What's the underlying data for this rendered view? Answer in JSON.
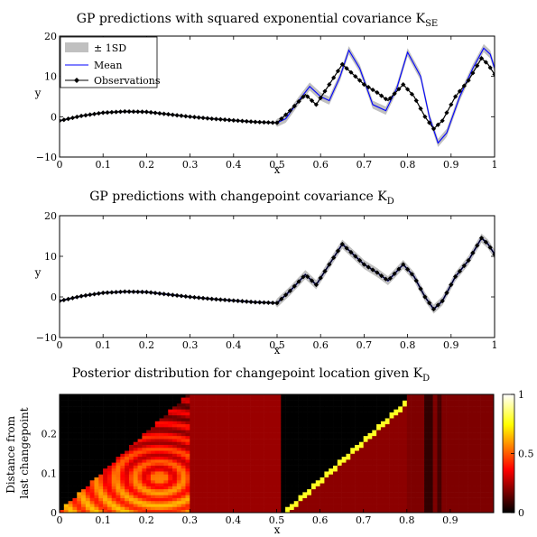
{
  "chart_data": [
    {
      "type": "line",
      "title": "GP predictions with squared exponential covariance K",
      "title_sub": "SE",
      "xlabel": "x",
      "ylabel": "y",
      "xlim": [
        0,
        1
      ],
      "ylim": [
        -10,
        20
      ],
      "xticks": [
        "0",
        "0.1",
        "0.2",
        "0.3",
        "0.4",
        "0.5",
        "0.6",
        "0.7",
        "0.8",
        "0.9",
        "1"
      ],
      "yticks": [
        "−10",
        "0",
        "10",
        "20"
      ],
      "legend": {
        "placement": "top-left",
        "entries": [
          "± 1SD",
          "Mean",
          "Observations"
        ]
      },
      "colors": {
        "mean": "#0000ff",
        "band": "#c0c0c0",
        "obs": "#000000"
      },
      "series": [
        {
          "name": "Observations",
          "x": [
            0,
            0.05,
            0.1,
            0.15,
            0.2,
            0.25,
            0.3,
            0.35,
            0.4,
            0.45,
            0.5,
            0.53,
            0.565,
            0.59,
            0.62,
            0.65,
            0.68,
            0.7,
            0.73,
            0.755,
            0.79,
            0.815,
            0.84,
            0.86,
            0.88,
            0.91,
            0.94,
            0.97,
            0.985,
            1.0
          ],
          "y": [
            -1,
            0.2,
            1.0,
            1.3,
            1.2,
            0.6,
            0,
            -0.5,
            -0.9,
            -1.3,
            -1.5,
            1.5,
            5.5,
            3.0,
            8.0,
            13.0,
            10.0,
            8.0,
            6.0,
            4.0,
            8.0,
            5.0,
            0.0,
            -3.0,
            -1.0,
            5.0,
            9.0,
            14.5,
            13.0,
            10.5
          ]
        },
        {
          "name": "Mean",
          "x": [
            0,
            0.05,
            0.1,
            0.15,
            0.2,
            0.25,
            0.3,
            0.35,
            0.4,
            0.45,
            0.5,
            0.52,
            0.55,
            0.575,
            0.6,
            0.62,
            0.645,
            0.665,
            0.69,
            0.72,
            0.75,
            0.775,
            0.8,
            0.83,
            0.85,
            0.87,
            0.89,
            0.92,
            0.95,
            0.975,
            0.99,
            1.0
          ],
          "y": [
            -1,
            0.2,
            1.0,
            1.3,
            1.2,
            0.6,
            0,
            -0.5,
            -0.9,
            -1.3,
            -1.5,
            -0.5,
            4.0,
            7.5,
            5.0,
            4.0,
            10.0,
            16.5,
            12.0,
            3.0,
            1.5,
            7.0,
            16.0,
            10.0,
            0.0,
            -6.5,
            -4.0,
            5.0,
            12.0,
            17.0,
            15.5,
            12.0
          ]
        }
      ]
    },
    {
      "type": "line",
      "title": "GP predictions with changepoint covariance K",
      "title_sub": "D",
      "xlabel": "x",
      "ylabel": "y",
      "xlim": [
        0,
        1
      ],
      "ylim": [
        -10,
        20
      ],
      "xticks": [
        "0",
        "0.1",
        "0.2",
        "0.3",
        "0.4",
        "0.5",
        "0.6",
        "0.7",
        "0.8",
        "0.9",
        "1"
      ],
      "yticks": [
        "−10",
        "0",
        "10",
        "20"
      ],
      "colors": {
        "mean": "#0000ff",
        "band": "#c0c0c0",
        "obs": "#000000"
      },
      "series": [
        {
          "name": "Observations",
          "x": [
            0,
            0.05,
            0.1,
            0.15,
            0.2,
            0.25,
            0.3,
            0.35,
            0.4,
            0.45,
            0.5,
            0.53,
            0.565,
            0.59,
            0.62,
            0.65,
            0.68,
            0.7,
            0.73,
            0.755,
            0.79,
            0.815,
            0.84,
            0.86,
            0.88,
            0.91,
            0.94,
            0.97,
            0.985,
            1.0
          ],
          "y": [
            -1,
            0.2,
            1.0,
            1.3,
            1.2,
            0.6,
            0,
            -0.5,
            -0.9,
            -1.3,
            -1.5,
            1.5,
            5.5,
            3.0,
            8.0,
            13.0,
            10.0,
            8.0,
            6.0,
            4.0,
            8.0,
            5.0,
            0.0,
            -3.0,
            -1.0,
            5.0,
            9.0,
            14.5,
            13.0,
            10.5
          ]
        }
      ]
    },
    {
      "type": "heatmap",
      "title": "Posterior distribution for changepoint location given K",
      "title_sub": "D",
      "xlabel": "x",
      "ylabel_lines": [
        "Distance from",
        "last changepoint"
      ],
      "xlim": [
        0,
        1
      ],
      "ylim": [
        0,
        0.3
      ],
      "xticks": [
        "0",
        "0.1",
        "0.2",
        "0.3",
        "0.4",
        "0.5",
        "0.6",
        "0.7",
        "0.8",
        "0.9"
      ],
      "yticks": [
        "0",
        "0.1",
        "0.2"
      ],
      "colorbar": {
        "range": [
          0,
          1
        ],
        "ticks": [
          "0",
          "0.5",
          "1"
        ],
        "colormap": "hot"
      },
      "regions": [
        {
          "x": [
            0.0,
            0.3
          ],
          "pattern": "triangle-rings"
        },
        {
          "x": [
            0.3,
            0.515
          ],
          "level": 0.22
        },
        {
          "x": [
            0.515,
            0.52
          ],
          "level": 0.0
        },
        {
          "x": [
            0.52,
            0.8
          ],
          "pattern": "diagonal"
        },
        {
          "x": [
            0.8,
            1.0
          ],
          "level": 0.18
        }
      ]
    }
  ]
}
